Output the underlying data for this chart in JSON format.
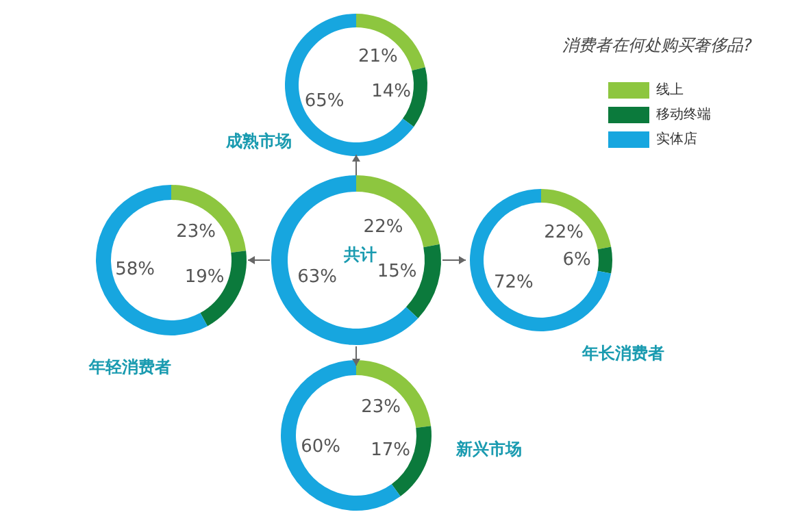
{
  "chart_data": {
    "type": "donut",
    "legend_title": "消费者在何处购买奢侈品?",
    "legend": "top right",
    "categories": [
      "线上",
      "移动终端",
      "实体店"
    ],
    "colors": [
      "#8dc63f",
      "#0b7a3c",
      "#17a6df"
    ],
    "series": [
      {
        "name": "成熟市场",
        "values": [
          21,
          14,
          65
        ],
        "value_labels": [
          "21%",
          "14%",
          "65%"
        ]
      },
      {
        "name": "年轻消费者",
        "values": [
          23,
          19,
          58
        ],
        "value_labels": [
          "23%",
          "19%",
          "58%"
        ]
      },
      {
        "name": "共计",
        "values": [
          22,
          15,
          63
        ],
        "value_labels": [
          "22%",
          "15%",
          "63%"
        ]
      },
      {
        "name": "年长消费者",
        "values": [
          22,
          6,
          72
        ],
        "value_labels": [
          "22%",
          "6%",
          "72%"
        ]
      },
      {
        "name": "新兴市场",
        "values": [
          23,
          17,
          60
        ],
        "value_labels": [
          "23%",
          "17%",
          "60%"
        ]
      }
    ]
  }
}
